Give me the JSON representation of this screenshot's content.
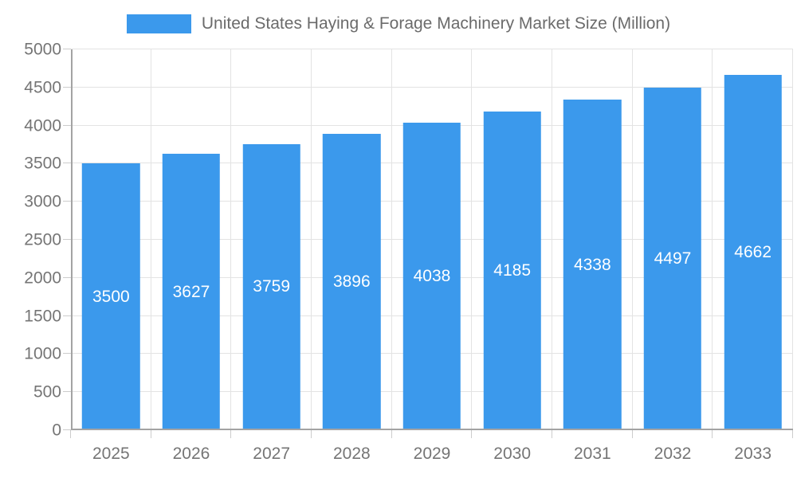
{
  "legend": {
    "label": "United States Haying & Forage Machinery Market Size (Million)"
  },
  "chart_data": {
    "type": "bar",
    "title": "United States Haying & Forage Machinery Market Size (Million)",
    "series_name": "United States Haying & Forage Machinery Market Size (Million)",
    "categories": [
      "2025",
      "2026",
      "2027",
      "2028",
      "2029",
      "2030",
      "2031",
      "2032",
      "2033"
    ],
    "values": [
      3500,
      3627,
      3759,
      3896,
      4038,
      4185,
      4338,
      4497,
      4662
    ],
    "xlabel": "",
    "ylabel": "",
    "ylim": [
      0,
      5000
    ],
    "ytick_step": 500,
    "ytick_labels": [
      "0",
      "500",
      "1000",
      "1500",
      "2000",
      "2500",
      "3000",
      "3500",
      "4000",
      "4500",
      "5000"
    ],
    "grid": true,
    "legend_position": "top",
    "value_labels_shown": true
  },
  "colors": {
    "bar": "#3B99EC",
    "value_label": "#ffffff",
    "grid": "#e3e3e3",
    "axis": "#a3a3a3",
    "tick": "#cccccc",
    "tick_label": "#757575",
    "legend_text": "#6b6b6b",
    "background": "#ffffff"
  }
}
